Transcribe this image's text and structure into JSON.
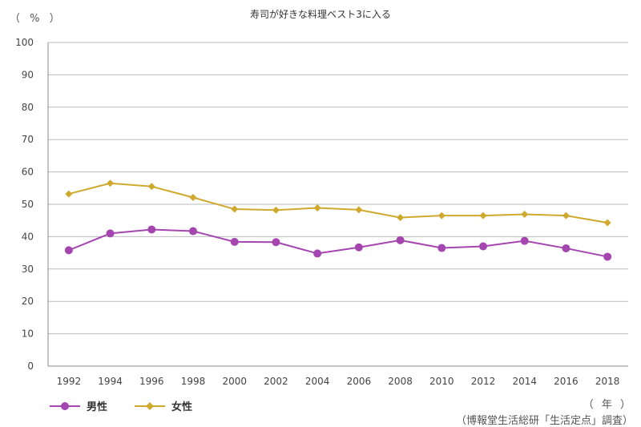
{
  "chart_data": {
    "type": "line",
    "title": "寿司が好きな料理ベスト3に入る",
    "ylabel": "（ % ）",
    "xlabel": "（ 年 ）",
    "ylim": [
      0,
      100
    ],
    "yticks": [
      0,
      10,
      20,
      30,
      40,
      50,
      60,
      70,
      80,
      90,
      100
    ],
    "categories": [
      "1992",
      "1994",
      "1996",
      "1998",
      "2000",
      "2002",
      "2004",
      "2006",
      "2008",
      "2010",
      "2012",
      "2014",
      "2016",
      "2018"
    ],
    "series": [
      {
        "name": "男性",
        "color": "#A545B0",
        "marker": "circle",
        "values": [
          35.8,
          41.0,
          42.2,
          41.7,
          38.4,
          38.3,
          34.8,
          36.7,
          38.9,
          36.5,
          37.0,
          38.7,
          36.4,
          33.8
        ]
      },
      {
        "name": "女性",
        "color": "#CFA92E",
        "marker": "diamond",
        "values": [
          53.2,
          56.5,
          55.5,
          52.1,
          48.5,
          48.2,
          48.9,
          48.3,
          45.9,
          46.5,
          46.5,
          46.9,
          46.5,
          44.3
        ]
      }
    ],
    "grid": true,
    "legend": "bottom-left"
  },
  "source": "（博報堂生活総研「生活定点」調査）"
}
